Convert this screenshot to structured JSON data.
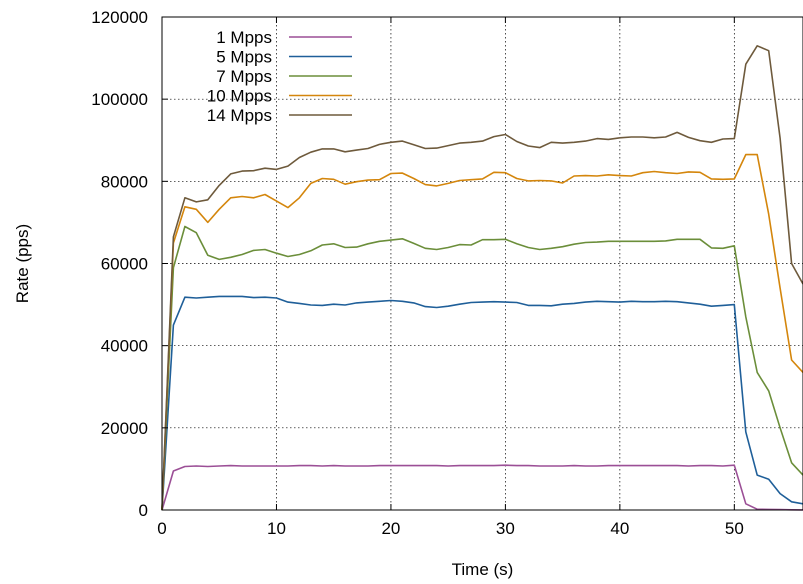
{
  "chart_data": {
    "type": "line",
    "title": "",
    "xlabel": "Time (s)",
    "ylabel": "Rate (pps)",
    "xlim": [
      0,
      56
    ],
    "ylim": [
      0,
      120000
    ],
    "xticks": [
      0,
      10,
      20,
      30,
      40,
      50
    ],
    "yticks": [
      0,
      20000,
      40000,
      60000,
      80000,
      100000,
      120000
    ],
    "grid": true,
    "legend_position": "top-left",
    "series": [
      {
        "name": "1 Mpps",
        "color": "#9b4f96",
        "x": [
          0,
          1,
          2,
          3,
          4,
          5,
          6,
          7,
          8,
          9,
          10,
          11,
          12,
          13,
          14,
          15,
          16,
          17,
          18,
          19,
          20,
          21,
          22,
          23,
          24,
          25,
          26,
          27,
          28,
          29,
          30,
          31,
          32,
          33,
          34,
          35,
          36,
          37,
          38,
          39,
          40,
          41,
          42,
          43,
          44,
          45,
          46,
          47,
          48,
          49,
          50,
          51,
          52,
          53,
          54,
          55,
          56
        ],
        "y": [
          0,
          9500,
          10600,
          10700,
          10600,
          10700,
          10800,
          10700,
          10700,
          10700,
          10700,
          10700,
          10800,
          10800,
          10700,
          10800,
          10700,
          10700,
          10700,
          10800,
          10800,
          10800,
          10800,
          10800,
          10800,
          10700,
          10800,
          10800,
          10800,
          10800,
          10900,
          10800,
          10800,
          10700,
          10700,
          10700,
          10800,
          10700,
          10700,
          10800,
          10800,
          10800,
          10800,
          10800,
          10800,
          10800,
          10700,
          10800,
          10800,
          10700,
          10900,
          1500,
          200,
          150,
          100,
          50,
          30
        ]
      },
      {
        "name": "5 Mpps",
        "color": "#1f5f99",
        "x": [
          0,
          1,
          2,
          3,
          4,
          5,
          6,
          7,
          8,
          9,
          10,
          11,
          12,
          13,
          14,
          15,
          16,
          17,
          18,
          19,
          20,
          21,
          22,
          23,
          24,
          25,
          26,
          27,
          28,
          29,
          30,
          31,
          32,
          33,
          34,
          35,
          36,
          37,
          38,
          39,
          40,
          41,
          42,
          43,
          44,
          45,
          46,
          47,
          48,
          49,
          50,
          51,
          52,
          53,
          54,
          55,
          56
        ],
        "y": [
          0,
          45000,
          51800,
          51600,
          51800,
          52000,
          52000,
          52000,
          51700,
          51800,
          51600,
          50600,
          50300,
          49900,
          49800,
          50100,
          49900,
          50400,
          50600,
          50800,
          51000,
          50800,
          50400,
          49500,
          49300,
          49600,
          50100,
          50500,
          50600,
          50700,
          50600,
          50500,
          49800,
          49800,
          49700,
          50100,
          50300,
          50600,
          50800,
          50700,
          50600,
          50800,
          50700,
          50700,
          50800,
          50700,
          50400,
          50100,
          49600,
          49800,
          50000,
          19000,
          8500,
          7500,
          4000,
          2000,
          1500
        ]
      },
      {
        "name": "7 Mpps",
        "color": "#6b8e3a",
        "x": [
          0,
          1,
          2,
          3,
          4,
          5,
          6,
          7,
          8,
          9,
          10,
          11,
          12,
          13,
          14,
          15,
          16,
          17,
          18,
          19,
          20,
          21,
          22,
          23,
          24,
          25,
          26,
          27,
          28,
          29,
          30,
          31,
          32,
          33,
          34,
          35,
          36,
          37,
          38,
          39,
          40,
          41,
          42,
          43,
          44,
          45,
          46,
          47,
          48,
          49,
          50,
          51,
          52,
          53,
          54,
          55,
          56
        ],
        "y": [
          0,
          59000,
          69000,
          67500,
          62000,
          61000,
          61500,
          62200,
          63200,
          63400,
          62500,
          61700,
          62200,
          63100,
          64500,
          64800,
          63900,
          64000,
          64800,
          65400,
          65700,
          66000,
          64900,
          63700,
          63400,
          63900,
          64600,
          64500,
          65800,
          65800,
          65900,
          64800,
          63900,
          63400,
          63700,
          64100,
          64700,
          65100,
          65200,
          65400,
          65400,
          65400,
          65400,
          65400,
          65500,
          65900,
          65900,
          65900,
          63800,
          63700,
          64300,
          47000,
          33500,
          29000,
          20000,
          11500,
          8500
        ]
      },
      {
        "name": "10 Mpps",
        "color": "#d4860c",
        "x": [
          0,
          1,
          2,
          3,
          4,
          5,
          6,
          7,
          8,
          9,
          10,
          11,
          12,
          13,
          14,
          15,
          16,
          17,
          18,
          19,
          20,
          21,
          22,
          23,
          24,
          25,
          26,
          27,
          28,
          29,
          30,
          31,
          32,
          33,
          34,
          35,
          36,
          37,
          38,
          39,
          40,
          41,
          42,
          43,
          44,
          45,
          46,
          47,
          48,
          49,
          50,
          51,
          52,
          53,
          54,
          55,
          56
        ],
        "y": [
          0,
          65000,
          73800,
          73200,
          70000,
          73200,
          76000,
          76300,
          76000,
          76800,
          75200,
          73600,
          76000,
          79500,
          80700,
          80500,
          79300,
          79900,
          80300,
          80400,
          81900,
          82000,
          80700,
          79200,
          78900,
          79500,
          80200,
          80400,
          80600,
          82200,
          82100,
          80700,
          80100,
          80200,
          80100,
          79600,
          81300,
          81400,
          81300,
          81600,
          81400,
          81300,
          82100,
          82400,
          82100,
          81900,
          82300,
          82200,
          80600,
          80500,
          80600,
          86500,
          86500,
          72000,
          54000,
          36500,
          33500
        ]
      },
      {
        "name": "14 Mpps",
        "color": "#6e5a3c",
        "x": [
          0,
          1,
          2,
          3,
          4,
          5,
          6,
          7,
          8,
          9,
          10,
          11,
          12,
          13,
          14,
          15,
          16,
          17,
          18,
          19,
          20,
          21,
          22,
          23,
          24,
          25,
          26,
          27,
          28,
          29,
          30,
          31,
          32,
          33,
          34,
          35,
          36,
          37,
          38,
          39,
          40,
          41,
          42,
          43,
          44,
          45,
          46,
          47,
          48,
          49,
          50,
          51,
          52,
          53,
          54,
          55,
          56
        ],
        "y": [
          0,
          66500,
          76000,
          75000,
          75500,
          79000,
          81800,
          82500,
          82600,
          83200,
          82900,
          83700,
          85800,
          87100,
          87900,
          87900,
          87200,
          87600,
          88000,
          89000,
          89500,
          89800,
          88900,
          88000,
          88100,
          88700,
          89300,
          89500,
          89800,
          90900,
          91400,
          89700,
          88600,
          88200,
          89500,
          89300,
          89500,
          89800,
          90400,
          90200,
          90600,
          90800,
          90800,
          90600,
          90800,
          91900,
          90700,
          89900,
          89500,
          90300,
          90400,
          108500,
          113000,
          111800,
          90500,
          60000,
          55000
        ]
      }
    ]
  }
}
